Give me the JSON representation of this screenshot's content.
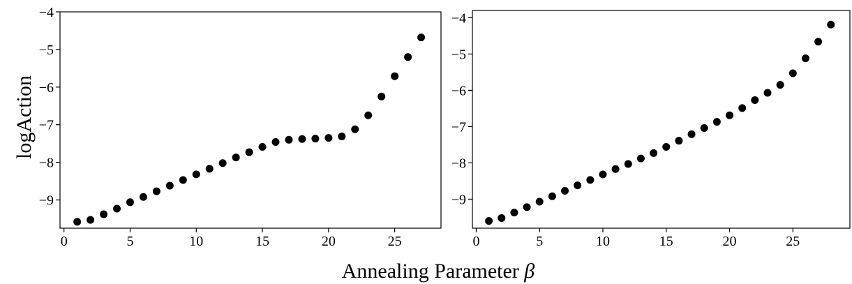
{
  "figure": {
    "ylabel": "logAction",
    "xlabel": "Annealing Parameter ",
    "xlabel_symbol": "β"
  },
  "chart_data": [
    {
      "type": "scatter",
      "xlabel": "Annealing Parameter β",
      "ylabel": "logAction",
      "xlim": [
        -0.3,
        28.5
      ],
      "ylim": [
        -9.75,
        -4
      ],
      "xticks": [
        0,
        5,
        10,
        15,
        20,
        25
      ],
      "yticks": [
        -4,
        -5,
        -6,
        -7,
        -8,
        -9
      ],
      "ytick_labels": [
        "−4",
        "−5",
        "−6",
        "−7",
        "−8",
        "−9"
      ],
      "grid": false,
      "marker_color": "#000000",
      "series": [
        {
          "x": [
            1,
            2,
            3,
            4,
            5,
            6,
            7,
            8,
            9,
            10,
            11,
            12,
            13,
            14,
            15,
            16,
            17,
            18,
            19,
            20,
            21,
            22,
            23,
            24,
            25,
            26,
            27
          ],
          "y": [
            -9.58,
            -9.53,
            -9.38,
            -9.23,
            -9.06,
            -8.92,
            -8.77,
            -8.62,
            -8.47,
            -8.32,
            -8.17,
            -8.02,
            -7.87,
            -7.73,
            -7.59,
            -7.46,
            -7.4,
            -7.38,
            -7.37,
            -7.35,
            -7.31,
            -7.12,
            -6.75,
            -6.25,
            -5.71,
            -5.2,
            -4.68
          ]
        }
      ]
    },
    {
      "type": "scatter",
      "xlabel": "Annealing Parameter β",
      "ylabel": "logAction",
      "xlim": [
        -0.3,
        29.5
      ],
      "ylim": [
        -9.8,
        -3.8
      ],
      "xticks": [
        0,
        5,
        10,
        15,
        20,
        25
      ],
      "yticks": [
        -4,
        -5,
        -6,
        -7,
        -8,
        -9
      ],
      "ytick_labels": [
        "−4",
        "−5",
        "−6",
        "−7",
        "−8",
        "−9"
      ],
      "grid": false,
      "marker_color": "#000000",
      "series": [
        {
          "x": [
            1,
            2,
            3,
            4,
            5,
            6,
            7,
            8,
            9,
            10,
            11,
            12,
            13,
            14,
            15,
            16,
            17,
            18,
            19,
            20,
            21,
            22,
            23,
            24,
            25,
            26,
            27,
            28
          ],
          "y": [
            -9.6,
            -9.52,
            -9.37,
            -9.22,
            -9.07,
            -8.92,
            -8.77,
            -8.62,
            -8.47,
            -8.32,
            -8.17,
            -8.03,
            -7.88,
            -7.73,
            -7.56,
            -7.39,
            -7.21,
            -7.04,
            -6.87,
            -6.69,
            -6.49,
            -6.27,
            -6.07,
            -5.85,
            -5.53,
            -5.12,
            -4.66,
            -4.19
          ]
        }
      ]
    }
  ]
}
